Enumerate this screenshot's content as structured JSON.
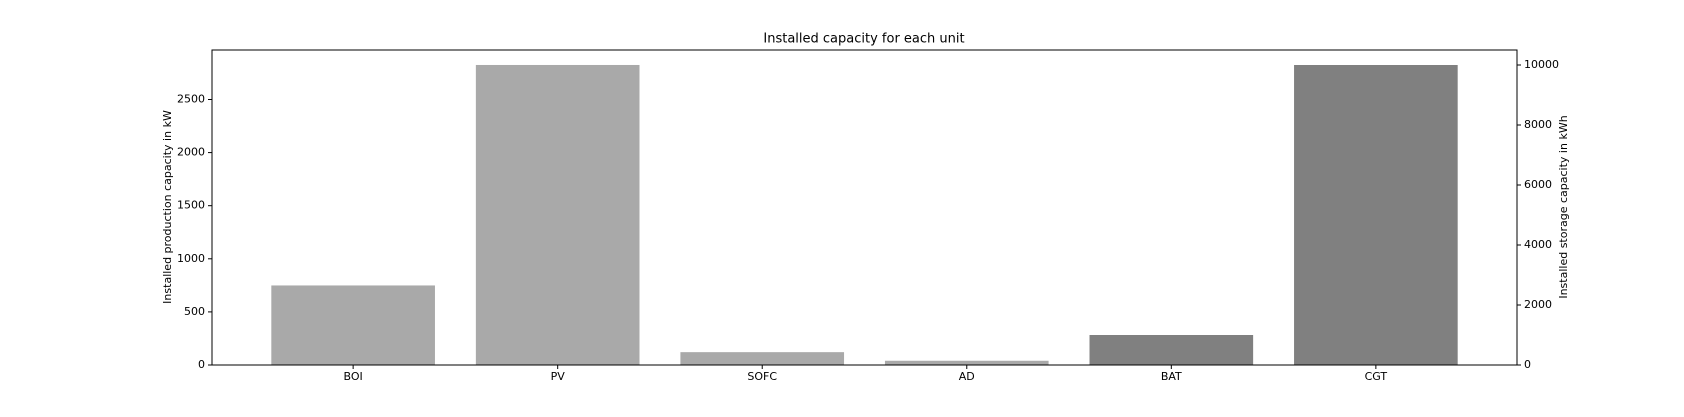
{
  "chart_data": {
    "type": "bar",
    "title": "Installed capacity for each unit",
    "categories": [
      "BOI",
      "PV",
      "SOFC",
      "AD",
      "BAT",
      "CGT"
    ],
    "series": [
      {
        "color": "#a9a9a9",
        "values": [
          749,
          2825,
          121,
          40,
          null,
          null
        ]
      },
      {
        "color": "#808080",
        "axis": "y2",
        "values": [
          null,
          null,
          null,
          null,
          1000,
          10000
        ]
      }
    ],
    "ylabel": "Installed production capacity in kW",
    "y2label": "Installed storage capacity in kWh",
    "ylim": [
      0,
      2966
    ],
    "yticks": [
      0,
      500,
      1000,
      1500,
      2000,
      2500
    ],
    "y2lim": [
      0,
      10500
    ],
    "y2ticks": [
      0,
      2000,
      4000,
      6000,
      8000,
      10000
    ]
  }
}
